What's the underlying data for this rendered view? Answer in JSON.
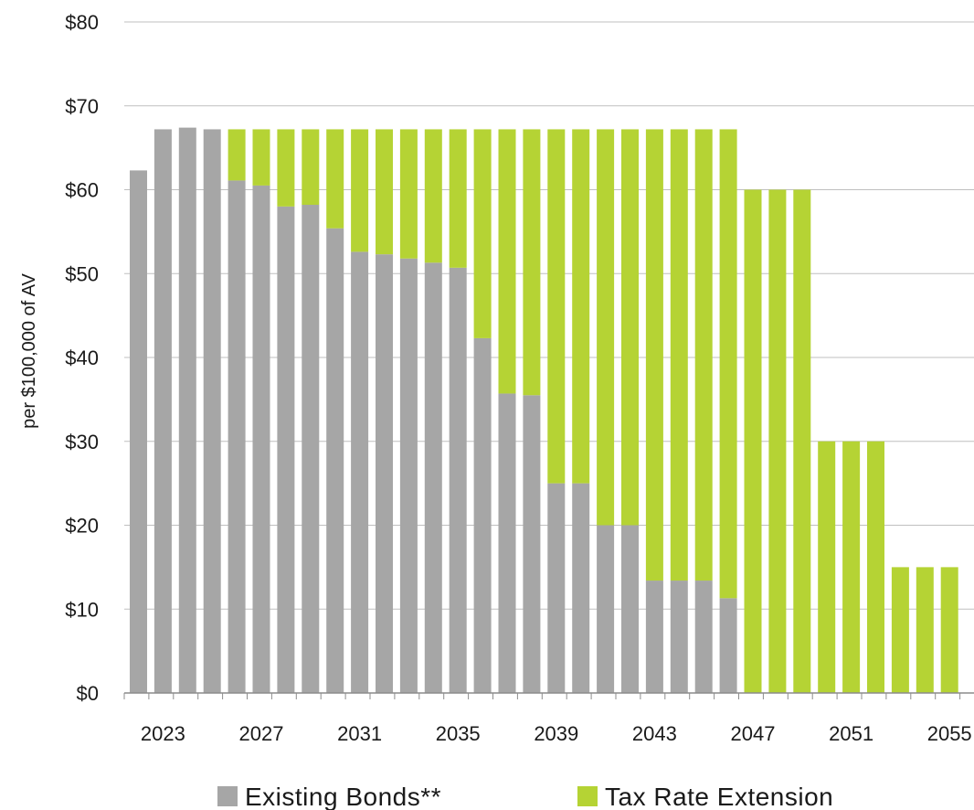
{
  "chart_data": {
    "type": "bar",
    "stacked": true,
    "title": "",
    "xlabel": "",
    "ylabel": "per $100,000 of AV",
    "ylim": [
      0,
      80
    ],
    "y_ticks": [
      0,
      10,
      20,
      30,
      40,
      50,
      60,
      70,
      80
    ],
    "y_tick_labels": [
      "$0",
      "$10",
      "$20",
      "$30",
      "$40",
      "$50",
      "$60",
      "$70",
      "$80"
    ],
    "x_tick_labels": [
      "2023",
      "2027",
      "2031",
      "2035",
      "2039",
      "2043",
      "2047",
      "2051",
      "2055"
    ],
    "grid": "horizontal",
    "legend_position": "bottom",
    "categories": [
      "2022",
      "2023",
      "2024",
      "2025",
      "2026",
      "2027",
      "2028",
      "2029",
      "2030",
      "2031",
      "2032",
      "2033",
      "2034",
      "2035",
      "2036",
      "2037",
      "2038",
      "2039",
      "2040",
      "2041",
      "2042",
      "2043",
      "2044",
      "2045",
      "2046",
      "2047",
      "2048",
      "2049",
      "2050",
      "2051",
      "2052",
      "2053",
      "2054",
      "2055",
      "2056"
    ],
    "series": [
      {
        "name": "Existing Bonds**",
        "color": "#a6a6a6",
        "values": [
          62.3,
          67.2,
          67.4,
          67.2,
          61.1,
          60.5,
          58.0,
          58.2,
          55.4,
          52.6,
          52.3,
          51.8,
          51.3,
          50.7,
          42.3,
          35.7,
          35.5,
          25.0,
          25.0,
          20.0,
          20.0,
          13.4,
          13.4,
          13.4,
          11.3,
          0,
          0,
          0,
          0,
          0,
          0,
          0,
          0,
          0,
          0
        ]
      },
      {
        "name": "Tax Rate Extension",
        "color": "#b5d334",
        "values": [
          0,
          0,
          0,
          0,
          6.1,
          6.7,
          9.2,
          9.0,
          11.8,
          14.6,
          14.9,
          15.4,
          15.9,
          16.5,
          24.9,
          31.5,
          31.7,
          42.2,
          42.2,
          47.2,
          47.2,
          53.8,
          53.8,
          53.8,
          55.9,
          60.0,
          60.0,
          60.0,
          30.0,
          30.0,
          30.0,
          15.0,
          15.0,
          15.0,
          0
        ]
      }
    ]
  }
}
